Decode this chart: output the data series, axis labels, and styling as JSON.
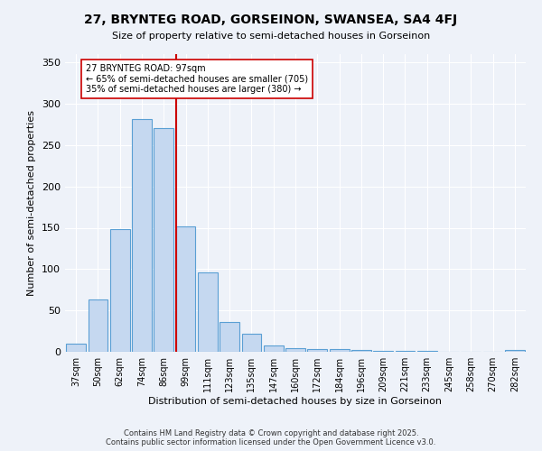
{
  "title": "27, BRYNTEG ROAD, GORSEINON, SWANSEA, SA4 4FJ",
  "subtitle": "Size of property relative to semi-detached houses in Gorseinon",
  "xlabel": "Distribution of semi-detached houses by size in Gorseinon",
  "ylabel": "Number of semi-detached properties",
  "categories": [
    "37sqm",
    "50sqm",
    "62sqm",
    "74sqm",
    "86sqm",
    "99sqm",
    "111sqm",
    "123sqm",
    "135sqm",
    "147sqm",
    "160sqm",
    "172sqm",
    "184sqm",
    "196sqm",
    "209sqm",
    "221sqm",
    "233sqm",
    "245sqm",
    "258sqm",
    "270sqm",
    "282sqm"
  ],
  "values": [
    10,
    63,
    148,
    281,
    270,
    152,
    96,
    36,
    22,
    8,
    4,
    3,
    3,
    2,
    1,
    1,
    1,
    0,
    0,
    0,
    2
  ],
  "bar_color": "#c5d8f0",
  "bar_edge_color": "#5a9fd4",
  "line_x_index": 5,
  "line_color": "#cc0000",
  "annotation_box_edge_color": "#cc0000",
  "ann_label": "27 BRYNTEG ROAD: 97sqm",
  "ann_smaller": "← 65% of semi-detached houses are smaller (705)",
  "ann_larger": "35% of semi-detached houses are larger (380) →",
  "ylim": [
    0,
    360
  ],
  "yticks": [
    0,
    50,
    100,
    150,
    200,
    250,
    300,
    350
  ],
  "background_color": "#eef2f9",
  "grid_color": "#ffffff",
  "footer_line1": "Contains HM Land Registry data © Crown copyright and database right 2025.",
  "footer_line2": "Contains public sector information licensed under the Open Government Licence v3.0."
}
